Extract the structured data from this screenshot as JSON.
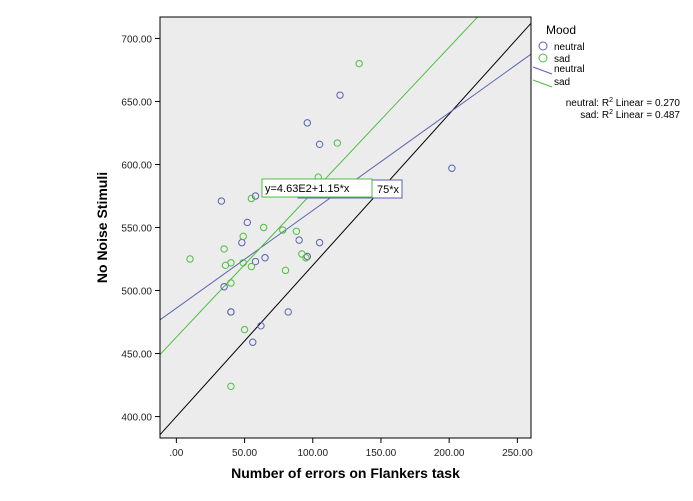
{
  "chart_data": {
    "type": "scatter",
    "xlabel": "Number of errors on Flankers task",
    "ylabel": "No Noise Stimuli",
    "xlim": [
      -12,
      260
    ],
    "ylim": [
      383,
      717
    ],
    "x_ticks": [
      0,
      50,
      100,
      150,
      200,
      250
    ],
    "x_tick_labels": [
      ".00",
      "50.00",
      "100.00",
      "150.00",
      "200.00",
      "250.00"
    ],
    "y_ticks": [
      400,
      450,
      500,
      550,
      600,
      650,
      700
    ],
    "y_tick_labels": [
      "400.00",
      "450.00",
      "500.00",
      "550.00",
      "600.00",
      "650.00",
      "700.00"
    ],
    "background": "#ececec",
    "legend": {
      "title": "Mood",
      "position": "right",
      "items": [
        {
          "label": "neutral",
          "kind": "marker",
          "color": "#5a62b0"
        },
        {
          "label": "sad",
          "kind": "marker",
          "color": "#4cbf40"
        },
        {
          "label": "neutral",
          "kind": "line",
          "color": "#5a62b0"
        },
        {
          "label": "sad",
          "kind": "line",
          "color": "#4cbf40"
        }
      ]
    },
    "r2_annotations": [
      {
        "prefix": "neutral: R",
        "sup": "2",
        "suffix": " Linear = 0.270"
      },
      {
        "prefix": "sad: R",
        "sup": "2",
        "suffix": " Linear = 0.487"
      }
    ],
    "equation_labels": [
      "75*x",
      "y=4.63E2+1.15*x"
    ],
    "series": [
      {
        "name": "neutral",
        "color": "#5a62b0",
        "points": [
          [
            33,
            571
          ],
          [
            52,
            554
          ],
          [
            96,
            633
          ],
          [
            105,
            616
          ],
          [
            120,
            655
          ],
          [
            202,
            597
          ],
          [
            58,
            575
          ],
          [
            48,
            538
          ],
          [
            65,
            526
          ],
          [
            90,
            540
          ],
          [
            105,
            538
          ],
          [
            96,
            527
          ],
          [
            58,
            523
          ],
          [
            35,
            503
          ],
          [
            40,
            483
          ],
          [
            40,
            483
          ],
          [
            82,
            483
          ],
          [
            62,
            472
          ],
          [
            56,
            459
          ]
        ]
      },
      {
        "name": "sad",
        "color": "#4cbf40",
        "points": [
          [
            134,
            680
          ],
          [
            118,
            617
          ],
          [
            104,
            590
          ],
          [
            55,
            573
          ],
          [
            64,
            550
          ],
          [
            78,
            548
          ],
          [
            88,
            547
          ],
          [
            49,
            543
          ],
          [
            35,
            533
          ],
          [
            10,
            525
          ],
          [
            40,
            522
          ],
          [
            49,
            522
          ],
          [
            36,
            520
          ],
          [
            55,
            519
          ],
          [
            92,
            529
          ],
          [
            95,
            526
          ],
          [
            80,
            516
          ],
          [
            40,
            506
          ],
          [
            50,
            469
          ],
          [
            40,
            424
          ]
        ]
      }
    ],
    "fit_lines": [
      {
        "name": "neutral",
        "color": "#5a62b0",
        "intercept": 486,
        "slope": 0.775
      },
      {
        "name": "sad",
        "color": "#4cbf40",
        "intercept": 463,
        "slope": 1.15
      },
      {
        "name": "reference",
        "color": "#000000",
        "intercept": 400,
        "slope": 1.2
      }
    ]
  }
}
